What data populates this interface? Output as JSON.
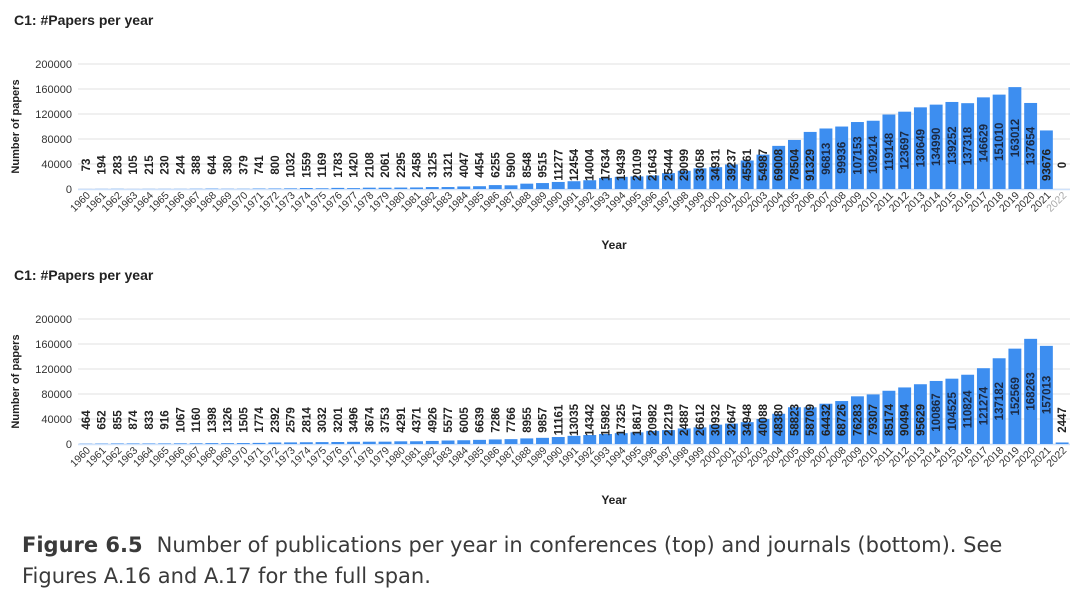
{
  "figure": {
    "label": "Figure 6.5",
    "caption": "Number of publications per year in conferences (top) and journals (bottom). See Figures A.16 and A.17 for the full span."
  },
  "chart_data": [
    {
      "type": "bar",
      "title": "C1: #Papers per year",
      "xlabel": "Year",
      "ylabel": "Number of papers",
      "ylim": [
        0,
        200000
      ],
      "yticks": [
        0,
        40000,
        80000,
        120000,
        160000,
        200000
      ],
      "grid": true,
      "bar_color": "#3d8ef0",
      "categories": [
        "1960",
        "1961",
        "1962",
        "1963",
        "1964",
        "1965",
        "1966",
        "1967",
        "1968",
        "1969",
        "1970",
        "1971",
        "1972",
        "1973",
        "1974",
        "1975",
        "1976",
        "1977",
        "1978",
        "1979",
        "1980",
        "1981",
        "1982",
        "1983",
        "1984",
        "1985",
        "1986",
        "1987",
        "1988",
        "1989",
        "1990",
        "1991",
        "1992",
        "1993",
        "1994",
        "1995",
        "1996",
        "1997",
        "1998",
        "1999",
        "2000",
        "2001",
        "2002",
        "2003",
        "2004",
        "2005",
        "2006",
        "2007",
        "2008",
        "2009",
        "2010",
        "2011",
        "2012",
        "2013",
        "2014",
        "2015",
        "2016",
        "2017",
        "2018",
        "2019",
        "2020",
        "2021",
        "2022"
      ],
      "values": [
        73,
        194,
        283,
        105,
        215,
        230,
        244,
        388,
        644,
        380,
        379,
        741,
        800,
        1032,
        1559,
        1169,
        1783,
        1420,
        2108,
        2061,
        2295,
        2458,
        3125,
        3121,
        4047,
        4454,
        6255,
        5900,
        8548,
        9515,
        11277,
        12454,
        14004,
        17634,
        19439,
        20109,
        21643,
        25444,
        29099,
        33058,
        34931,
        39237,
        45561,
        54987,
        69008,
        78504,
        91329,
        96813,
        99936,
        107153,
        109214,
        119148,
        123697,
        130649,
        134990,
        139252,
        137318,
        146629,
        151010,
        163012,
        137654,
        93676,
        0
      ]
    },
    {
      "type": "bar",
      "title": "C1: #Papers per year",
      "xlabel": "Year",
      "ylabel": "Number of papers",
      "ylim": [
        0,
        200000
      ],
      "yticks": [
        0,
        40000,
        80000,
        120000,
        160000,
        200000
      ],
      "grid": true,
      "bar_color": "#3d8ef0",
      "categories": [
        "1960",
        "1961",
        "1962",
        "1963",
        "1964",
        "1965",
        "1966",
        "1967",
        "1968",
        "1969",
        "1970",
        "1971",
        "1972",
        "1973",
        "1974",
        "1975",
        "1976",
        "1977",
        "1978",
        "1979",
        "1980",
        "1981",
        "1982",
        "1983",
        "1984",
        "1985",
        "1986",
        "1987",
        "1988",
        "1989",
        "1990",
        "1991",
        "1992",
        "1993",
        "1994",
        "1995",
        "1996",
        "1997",
        "1998",
        "1999",
        "2000",
        "2001",
        "2002",
        "2003",
        "2004",
        "2005",
        "2006",
        "2007",
        "2008",
        "2009",
        "2010",
        "2011",
        "2012",
        "2013",
        "2014",
        "2015",
        "2016",
        "2017",
        "2018",
        "2019",
        "2020",
        "2021",
        "2022"
      ],
      "values": [
        464,
        652,
        855,
        874,
        833,
        916,
        1067,
        1160,
        1398,
        1326,
        1505,
        1774,
        2392,
        2579,
        2814,
        3032,
        3201,
        3496,
        3674,
        3753,
        4291,
        4371,
        4926,
        5577,
        6005,
        6639,
        7286,
        7766,
        8955,
        9857,
        11161,
        13035,
        14342,
        15982,
        17325,
        18617,
        20982,
        22219,
        24887,
        26612,
        30932,
        32647,
        34948,
        40088,
        48380,
        58823,
        58709,
        64432,
        68726,
        76283,
        79307,
        85174,
        90494,
        95629,
        100867,
        104525,
        110824,
        121274,
        137182,
        152569,
        168263,
        157013,
        2447
      ]
    }
  ]
}
